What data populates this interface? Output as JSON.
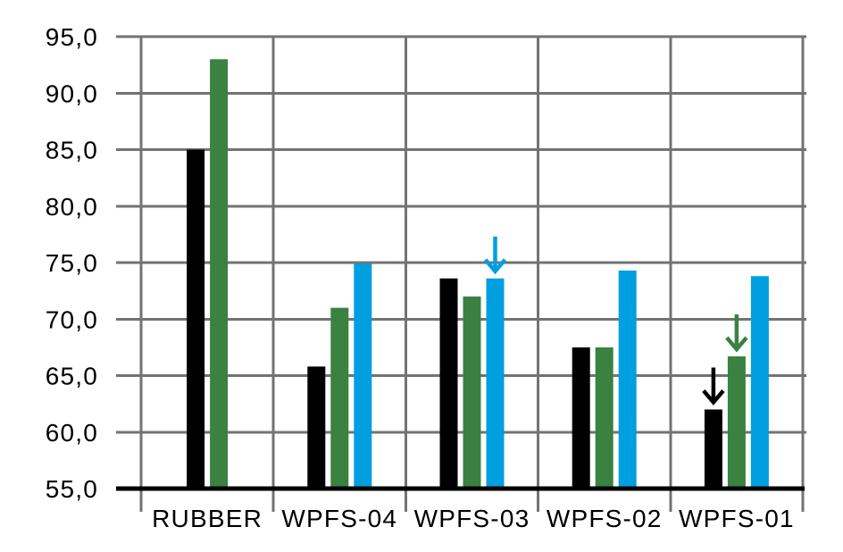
{
  "chart_data": {
    "type": "bar",
    "title": "",
    "xlabel": "",
    "ylabel": "",
    "categories": [
      "RUBBER",
      "WPFS-04",
      "WPFS-03",
      "WPFS-02",
      "WPFS-01"
    ],
    "series": [
      {
        "name": "black",
        "color": "#000000",
        "values": [
          85.0,
          65.8,
          73.6,
          67.5,
          62.0
        ]
      },
      {
        "name": "green",
        "color": "#3a8142",
        "values": [
          93.0,
          71.0,
          72.0,
          67.5,
          66.7
        ]
      },
      {
        "name": "blue",
        "color": "#009fe0",
        "values": [
          null,
          74.9,
          73.6,
          74.3,
          73.8
        ]
      }
    ],
    "ylim": [
      55,
      95
    ],
    "y_ticks": [
      55,
      60,
      65,
      70,
      75,
      80,
      85,
      90,
      95
    ],
    "y_tick_labels": [
      "55,0",
      "60,0",
      "65,0",
      "70,0",
      "75,0",
      "80,0",
      "85,0",
      "90,0",
      "95,0"
    ],
    "grid": true,
    "grid_color": "#737373",
    "axis_color": "#000000",
    "legend": "none",
    "annotations": [
      {
        "type": "down-arrow",
        "category": "WPFS-03",
        "series": "blue",
        "color": "#009fe0"
      },
      {
        "type": "down-arrow",
        "category": "WPFS-01",
        "series": "black",
        "color": "#000000"
      },
      {
        "type": "down-arrow",
        "category": "WPFS-01",
        "series": "green",
        "color": "#3a8142"
      }
    ]
  }
}
